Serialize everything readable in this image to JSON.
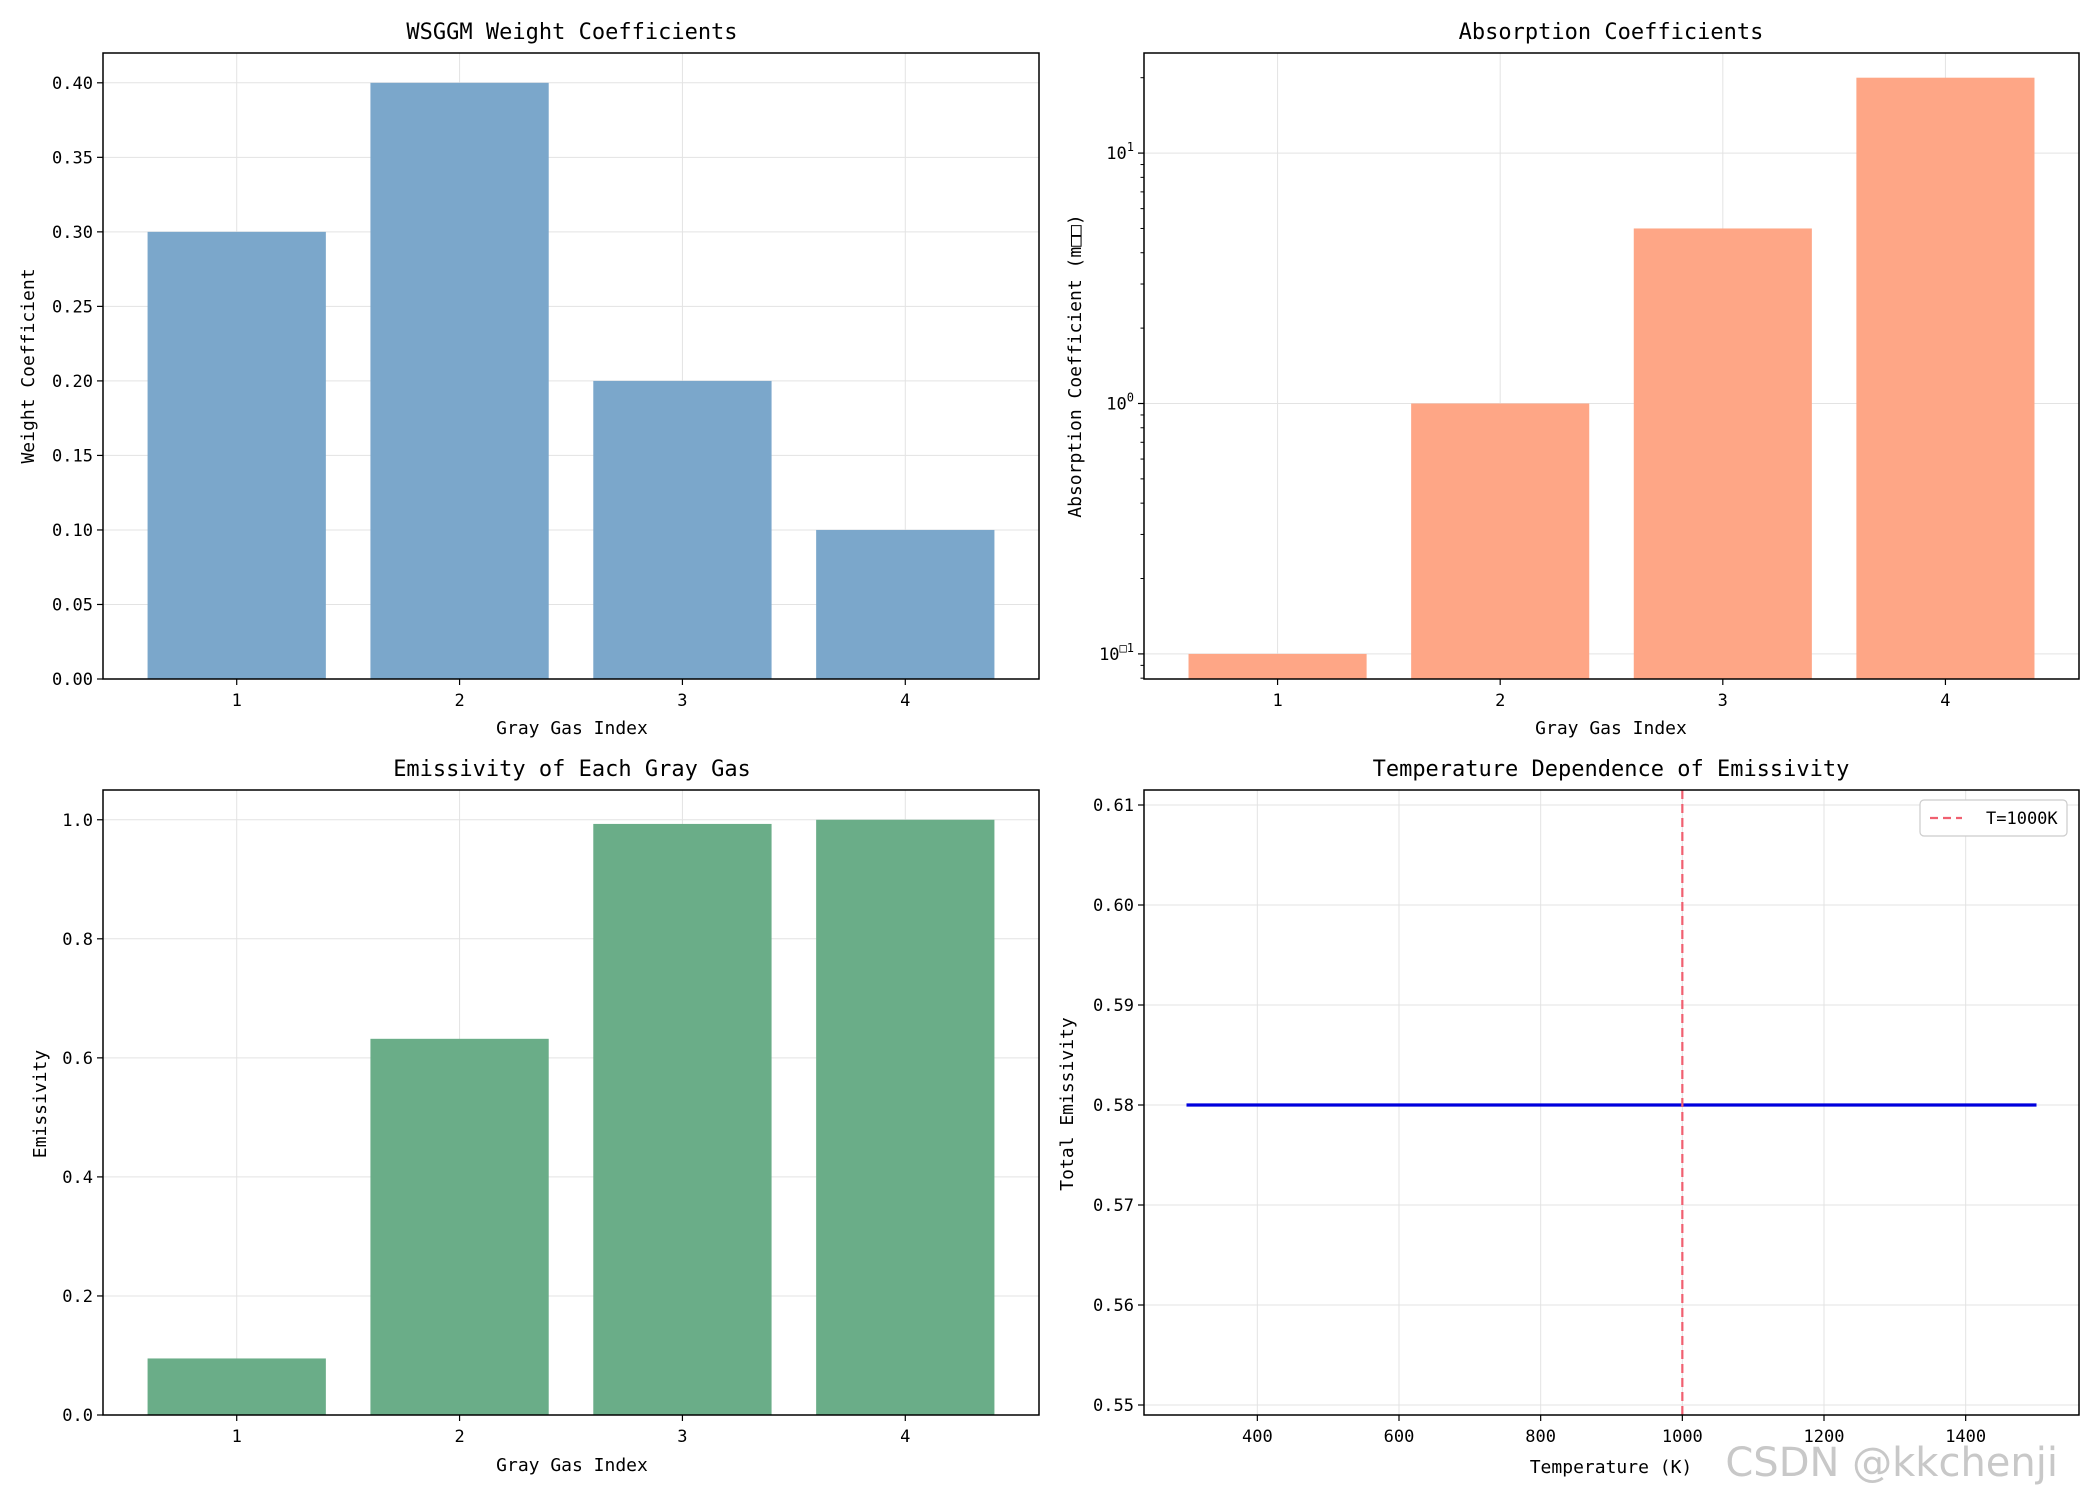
{
  "colors": {
    "weight_bar": "#7ba7cb",
    "absorption_bar": "#fea686",
    "emissivity_bar": "#6aad88",
    "line": "#0000dd",
    "ref_line": "#f06070",
    "grid": "#e3e3e3"
  },
  "watermark": "CSDN @kkchenji",
  "chart_data": [
    {
      "type": "bar",
      "title": "WSGGM Weight Coefficients",
      "xlabel": "Gray Gas Index",
      "ylabel": "Weight Coefficient",
      "categories": [
        "1",
        "2",
        "3",
        "4"
      ],
      "values": [
        0.3,
        0.4,
        0.2,
        0.1
      ],
      "ylim": [
        0,
        0.42
      ],
      "yticks": [
        0.0,
        0.05,
        0.1,
        0.15,
        0.2,
        0.25,
        0.3,
        0.35,
        0.4
      ],
      "ytick_labels": [
        "0.00",
        "0.05",
        "0.10",
        "0.15",
        "0.20",
        "0.25",
        "0.30",
        "0.35",
        "0.40"
      ],
      "grid": true
    },
    {
      "type": "bar",
      "title": "Absorption Coefficients",
      "xlabel": "Gray Gas Index",
      "ylabel": "Absorption Coefficient (m□□)",
      "categories": [
        "1",
        "2",
        "3",
        "4"
      ],
      "values": [
        0.1,
        1.0,
        5.0,
        20.0
      ],
      "yscale": "log",
      "ylim": [
        0.0794,
        25.1
      ],
      "yticks": [
        0.1,
        1,
        10
      ],
      "ytick_labels": [
        [
          "10",
          "□1"
        ],
        [
          "10",
          "0"
        ],
        [
          "10",
          "1"
        ]
      ],
      "grid": true
    },
    {
      "type": "bar",
      "title": "Emissivity of Each Gray Gas",
      "xlabel": "Gray Gas Index",
      "ylabel": "Emissivity",
      "categories": [
        "1",
        "2",
        "3",
        "4"
      ],
      "values": [
        0.095,
        0.632,
        0.993,
        1.0
      ],
      "ylim": [
        0,
        1.05
      ],
      "yticks": [
        0.0,
        0.2,
        0.4,
        0.6,
        0.8,
        1.0
      ],
      "ytick_labels": [
        "0.0",
        "0.2",
        "0.4",
        "0.6",
        "0.8",
        "1.0"
      ],
      "grid": true
    },
    {
      "type": "line",
      "title": "Temperature Dependence of Emissivity",
      "xlabel": "Temperature (K)",
      "ylabel": "Total Emissivity",
      "x": [
        300,
        1500
      ],
      "y": [
        0.58,
        0.58
      ],
      "xlim": [
        240,
        1560
      ],
      "ylim": [
        0.549,
        0.6115
      ],
      "xticks": [
        400,
        600,
        800,
        1000,
        1200,
        1400
      ],
      "xtick_labels": [
        "400",
        "600",
        "800",
        "1000",
        "1200",
        "1400"
      ],
      "yticks": [
        0.55,
        0.56,
        0.57,
        0.58,
        0.59,
        0.6,
        0.61
      ],
      "ytick_labels": [
        "0.55",
        "0.56",
        "0.57",
        "0.58",
        "0.59",
        "0.60",
        "0.61"
      ],
      "reference_line": {
        "x": 1000,
        "label": "T=1000K"
      },
      "legend": "top-right",
      "grid": true
    }
  ]
}
